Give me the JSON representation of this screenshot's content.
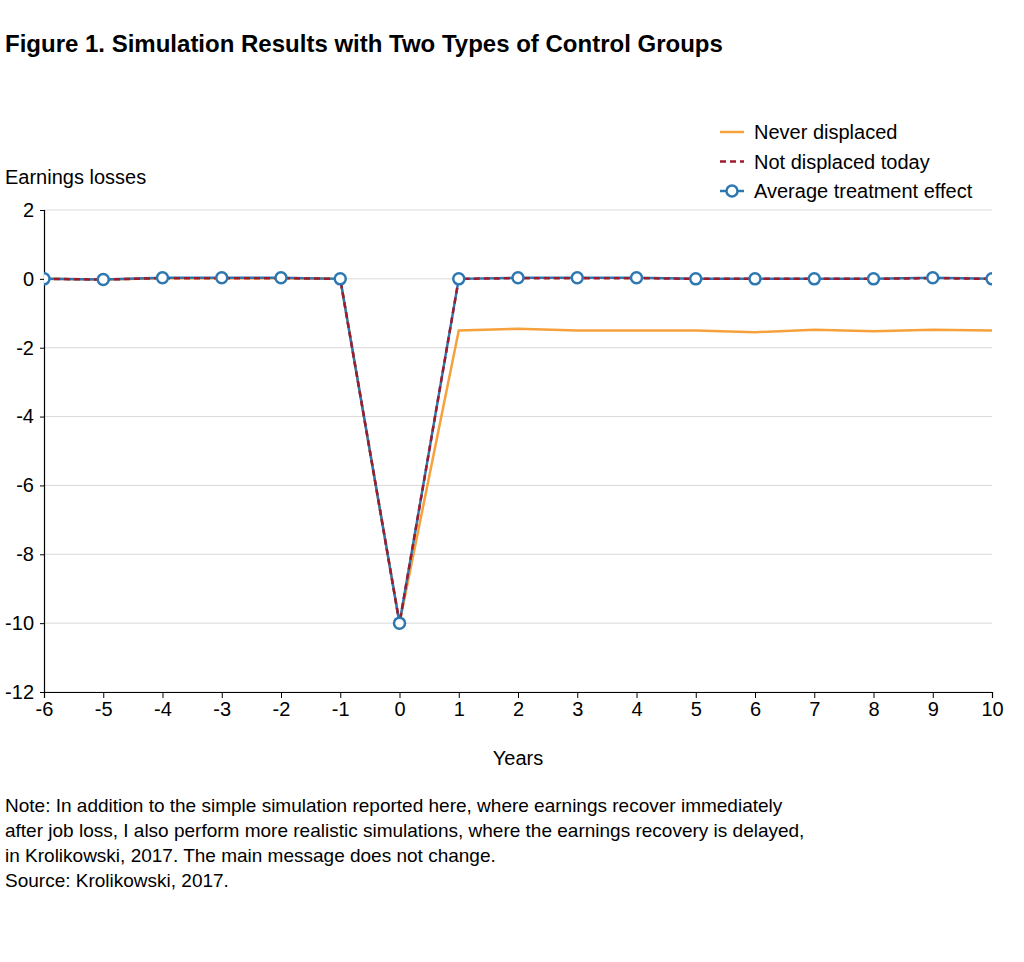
{
  "chart_data": {
    "type": "line",
    "title": "Figure 1.  Simulation Results with Two Types of Control Groups",
    "y_label": "Earnings losses",
    "x_label": "Years",
    "notes": [
      "Note: In addition to the simple simulation reported here, where earnings recover immediately",
      "after job loss, I also perform more realistic simulations, where the earnings recovery is delayed,",
      "in Krolikowski, 2017. The main message does not change.",
      "Source: Krolikowski, 2017."
    ],
    "x": [
      -6,
      -5,
      -4,
      -3,
      -2,
      -1,
      0,
      1,
      2,
      3,
      4,
      5,
      6,
      7,
      8,
      9,
      10
    ],
    "series": [
      {
        "name": "Never displaced",
        "color": "#f6a13c",
        "line_style": "solid",
        "values": [
          0,
          -0.02,
          0.02,
          0.02,
          0.02,
          0,
          -10,
          -1.5,
          -1.45,
          -1.5,
          -1.5,
          -1.5,
          -1.55,
          -1.48,
          -1.52,
          -1.48,
          -1.5
        ]
      },
      {
        "name": "Not displaced today",
        "color": "#9c1c2e",
        "line_style": "dashed",
        "values": [
          0,
          -0.02,
          0.02,
          0.02,
          0.02,
          0,
          -10,
          0,
          0.02,
          0.02,
          0.02,
          0,
          0,
          0,
          0,
          0.02,
          0
        ]
      },
      {
        "name": "Average treatment effect",
        "color": "#2e78b2",
        "line_style": "solid",
        "marker": "circle",
        "values": [
          0,
          -0.02,
          0.03,
          0.03,
          0.03,
          0,
          -10,
          0,
          0.03,
          0.03,
          0.03,
          0,
          0,
          0,
          0,
          0.03,
          0
        ]
      }
    ],
    "xlim": [
      -6,
      10
    ],
    "ylim": [
      -12,
      2
    ],
    "xticks": [
      -6,
      -5,
      -4,
      -3,
      -2,
      -1,
      0,
      1,
      2,
      3,
      4,
      5,
      6,
      7,
      8,
      9,
      10
    ],
    "yticks": [
      -12,
      -10,
      -8,
      -6,
      -4,
      -2,
      0,
      2
    ],
    "grid": true,
    "legend": "top-right"
  }
}
